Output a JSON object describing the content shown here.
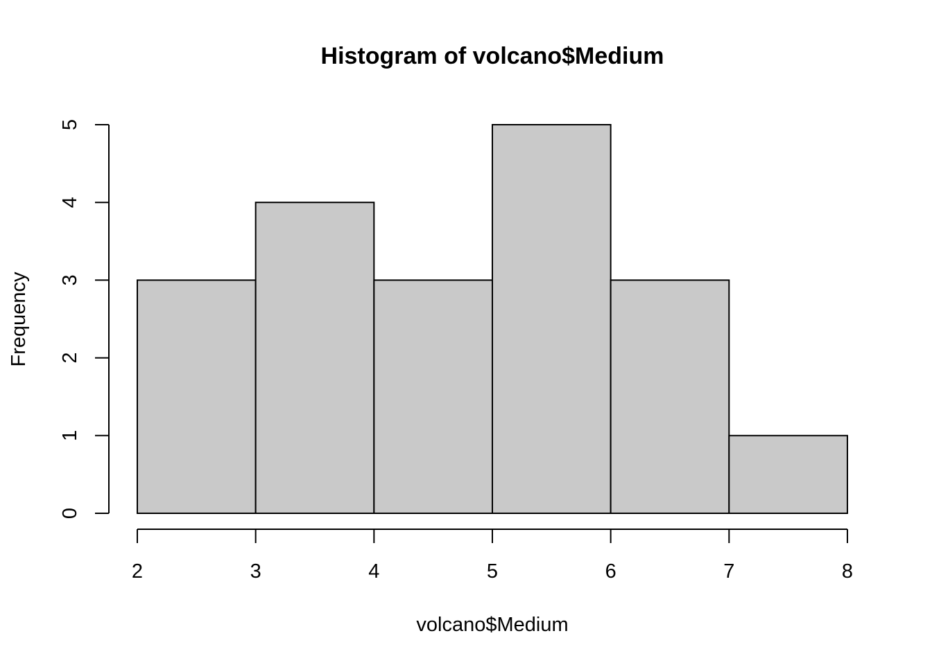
{
  "chart_data": {
    "type": "bar",
    "title": "Histogram of volcano$Medium",
    "xlabel": "volcano$Medium",
    "ylabel": "Frequency",
    "bins": [
      {
        "from": 2,
        "to": 3,
        "count": 3
      },
      {
        "from": 3,
        "to": 4,
        "count": 4
      },
      {
        "from": 4,
        "to": 5,
        "count": 3
      },
      {
        "from": 5,
        "to": 6,
        "count": 5
      },
      {
        "from": 6,
        "to": 7,
        "count": 3
      },
      {
        "from": 7,
        "to": 8,
        "count": 1
      }
    ],
    "xlim": [
      2,
      8
    ],
    "ylim": [
      0,
      5
    ],
    "x_ticks": [
      2,
      3,
      4,
      5,
      6,
      7,
      8
    ],
    "y_ticks": [
      0,
      1,
      2,
      3,
      4,
      5
    ],
    "bar_color": "#c9c9c9",
    "grid": false,
    "legend": "none"
  }
}
